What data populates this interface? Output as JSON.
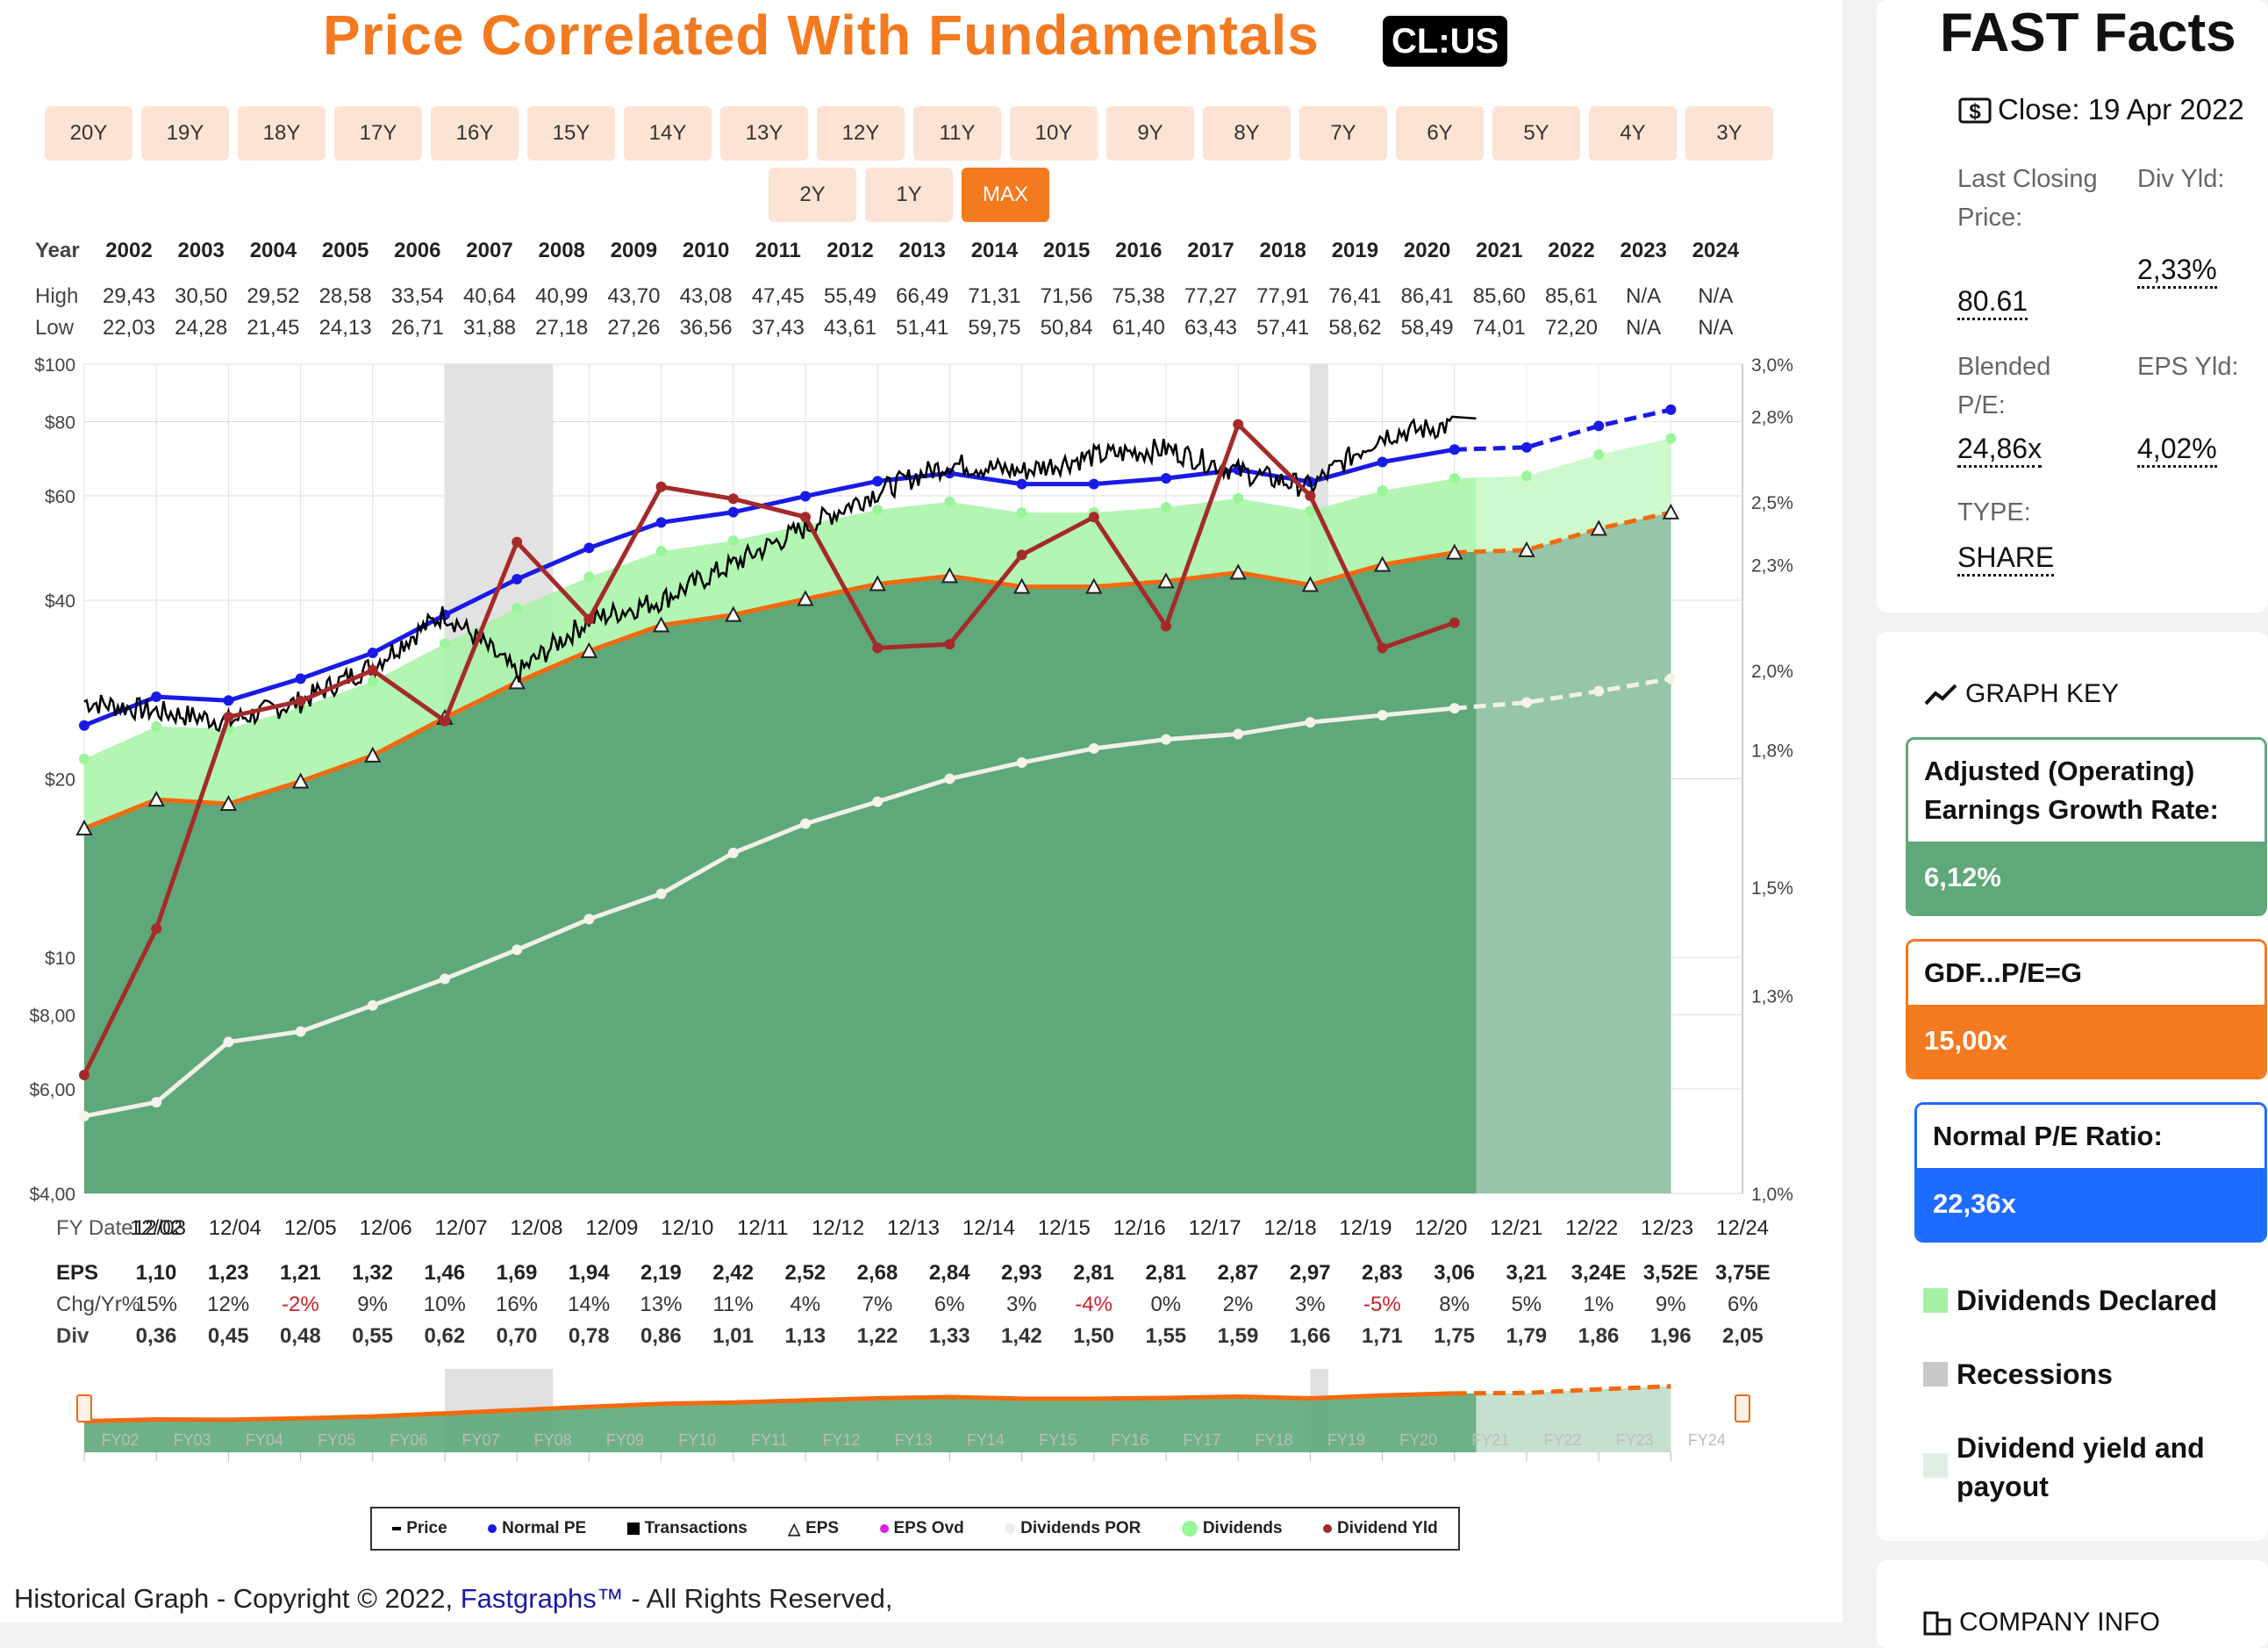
{
  "header": {
    "title": "Price Correlated With Fundamentals",
    "ticker": "CL:US"
  },
  "ranges": [
    "20Y",
    "19Y",
    "18Y",
    "17Y",
    "16Y",
    "15Y",
    "14Y",
    "13Y",
    "12Y",
    "11Y",
    "10Y",
    "9Y",
    "8Y",
    "7Y",
    "6Y",
    "5Y",
    "4Y",
    "3Y",
    "2Y",
    "1Y",
    "MAX"
  ],
  "active_range": "MAX",
  "year_table": {
    "year_label": "Year",
    "high_label": "High",
    "low_label": "Low",
    "years": [
      "2002",
      "2003",
      "2004",
      "2005",
      "2006",
      "2007",
      "2008",
      "2009",
      "2010",
      "2011",
      "2012",
      "2013",
      "2014",
      "2015",
      "2016",
      "2017",
      "2018",
      "2019",
      "2020",
      "2021",
      "2022",
      "2023",
      "2024"
    ],
    "high": [
      "29,43",
      "30,50",
      "29,52",
      "28,58",
      "33,54",
      "40,64",
      "40,99",
      "43,70",
      "43,08",
      "47,45",
      "55,49",
      "66,49",
      "71,31",
      "71,56",
      "75,38",
      "77,27",
      "77,91",
      "76,41",
      "86,41",
      "85,60",
      "85,61",
      "N/A",
      "N/A"
    ],
    "low": [
      "22,03",
      "24,28",
      "21,45",
      "24,13",
      "26,71",
      "31,88",
      "27,18",
      "27,26",
      "36,56",
      "37,43",
      "43,61",
      "51,41",
      "59,75",
      "50,84",
      "61,40",
      "63,43",
      "57,41",
      "58,62",
      "58,49",
      "74,01",
      "72,20",
      "N/A",
      "N/A"
    ]
  },
  "bottom_table": {
    "fy_label": "FY Date",
    "eps_label": "EPS",
    "chg_label": "Chg/Yr%",
    "div_label": "Div",
    "eps": [
      "1,10",
      "1,23",
      "1,21",
      "1,32",
      "1,46",
      "1,69",
      "1,94",
      "2,19",
      "2,42",
      "2,52",
      "2,68",
      "2,84",
      "2,93",
      "2,81",
      "2,81",
      "2,87",
      "2,97",
      "2,83",
      "3,06",
      "3,21",
      "3,24E",
      "3,52E",
      "3,75E"
    ],
    "chg": [
      "15%",
      "12%",
      "-2%",
      "9%",
      "10%",
      "16%",
      "14%",
      "13%",
      "11%",
      "4%",
      "7%",
      "6%",
      "3%",
      "-4%",
      "0%",
      "2%",
      "3%",
      "-5%",
      "8%",
      "5%",
      "1%",
      "9%",
      "6%"
    ],
    "div": [
      "0,36",
      "0,45",
      "0,48",
      "0,55",
      "0,62",
      "0,70",
      "0,78",
      "0,86",
      "1,01",
      "1,13",
      "1,22",
      "1,33",
      "1,42",
      "1,50",
      "1,55",
      "1,59",
      "1,66",
      "1,71",
      "1,75",
      "1,79",
      "1,86",
      "1,96",
      "2,05"
    ]
  },
  "chart_data": {
    "type": "line",
    "y_scale": "log",
    "ylim": [
      4,
      100
    ],
    "y_ticks": [
      "$100",
      "$80",
      "$60",
      "$40",
      "$20",
      "$10",
      "$8,00",
      "$6,00",
      "$4,00"
    ],
    "y2_ticks": [
      "3,0%",
      "2,8%",
      "2,5%",
      "2,3%",
      "2,0%",
      "1,8%",
      "1,5%",
      "1,3%",
      "1,0%"
    ],
    "x": [
      "12/02",
      "12/03",
      "12/04",
      "12/05",
      "12/06",
      "12/07",
      "12/08",
      "12/09",
      "12/10",
      "12/11",
      "12/12",
      "12/13",
      "12/14",
      "12/15",
      "12/16",
      "12/17",
      "12/18",
      "12/19",
      "12/20",
      "12/21",
      "12/22",
      "12/23",
      "12/24"
    ],
    "grid": true,
    "recessions": [
      [
        "12/07",
        "06/09"
      ],
      [
        "12/19",
        "04/20"
      ]
    ],
    "series": [
      {
        "name": "Price",
        "color": "#000000",
        "values": [
          27,
          26,
          25,
          27,
          31,
          38,
          30,
          37,
          40,
          46,
          53,
          61,
          68,
          66,
          70,
          72,
          66,
          62,
          76,
          79,
          81,
          null,
          null
        ]
      },
      {
        "name": "Normal PE",
        "color": "#1a1ae6",
        "values": [
          24.6,
          27.5,
          27.1,
          29.5,
          32.6,
          37.8,
          43.4,
          49.0,
          54.1,
          56.3,
          59.9,
          63.5,
          65.5,
          62.8,
          62.8,
          64.2,
          66.4,
          63.3,
          68.4,
          71.8,
          72.4,
          78.7,
          83.8
        ]
      },
      {
        "name": "EPS",
        "color": "#f26a0f",
        "values": [
          16.5,
          18.45,
          18.15,
          19.8,
          21.9,
          25.35,
          29.1,
          32.85,
          36.3,
          37.8,
          40.2,
          42.6,
          43.95,
          42.15,
          42.15,
          43.05,
          44.55,
          42.45,
          45.9,
          48.15,
          48.6,
          52.8,
          56.25
        ]
      },
      {
        "name": "Dividends POR",
        "color": "#f0f0e6",
        "values": [
          5.4,
          5.7,
          7.2,
          7.5,
          8.3,
          9.2,
          10.3,
          11.6,
          12.8,
          15.0,
          16.8,
          18.3,
          20.0,
          21.3,
          22.5,
          23.3,
          23.8,
          24.9,
          25.6,
          26.3,
          26.9,
          28.1,
          29.5
        ]
      },
      {
        "name": "Dividends",
        "color": "#b8f5b8",
        "values": [
          21.6,
          24.5,
          24.3,
          26.4,
          29.2,
          33.8,
          38.8,
          43.8,
          48.4,
          50.4,
          53.6,
          56.8,
          58.6,
          56.2,
          56.2,
          57.4,
          59.4,
          56.6,
          61.2,
          64.2,
          64.8,
          70.4,
          75.0
        ]
      },
      {
        "name": "Dividend Yld",
        "color": "#a52a2a",
        "values_pct": [
          1.17,
          1.42,
          1.88,
          1.92,
          2.0,
          1.87,
          2.37,
          2.14,
          2.55,
          2.51,
          2.45,
          2.06,
          2.07,
          2.33,
          2.45,
          2.12,
          2.77,
          2.52,
          2.06,
          2.13
        ]
      }
    ],
    "legend": [
      "Price",
      "Normal PE",
      "Transactions",
      "EPS",
      "EPS Ovd",
      "Dividends POR",
      "Dividends",
      "Dividend Yld"
    ],
    "navigator_labels": [
      "FY02",
      "FY03",
      "FY04",
      "FY05",
      "FY06",
      "FY07",
      "FY08",
      "FY09",
      "FY10",
      "FY11",
      "FY12",
      "FY13",
      "FY14",
      "FY15",
      "FY16",
      "FY17",
      "FY18",
      "FY19",
      "FY20",
      "FY21",
      "FY22",
      "FY23",
      "FY24"
    ]
  },
  "copyright": {
    "prefix": "Historical Graph - Copyright © 2022, ",
    "brand": "Fastgraphs™",
    "suffix": " - All Rights Reserved,"
  },
  "fast_facts": {
    "title": "FAST Facts",
    "close": "Close: 19 Apr 2022",
    "last_close_label": "Last Closing Price:",
    "last_close_value": "80.61",
    "div_yld_label": "Div Yld:",
    "div_yld_value": "2,33%",
    "blended_pe_label": "Blended P/E:",
    "blended_pe_value": "24,86x",
    "eps_yld_label": "EPS Yld:",
    "eps_yld_value": "4,02%",
    "type_label": "TYPE:",
    "type_value": "SHARE"
  },
  "graph_key": {
    "title": "GRAPH KEY",
    "growth_label": "Adjusted (Operating) Earnings Growth Rate:",
    "growth_value": "6,12%",
    "gdf_label": "GDF...P/E=G",
    "gdf_value": "15,00x",
    "normal_pe_label": "Normal P/E Ratio:",
    "normal_pe_value": "22,36x",
    "dividends_declared": "Dividends Declared",
    "recessions": "Recessions",
    "div_yield_payout": "Dividend yield and payout",
    "colors": {
      "green": "#5fa879",
      "orange": "#f47a20",
      "blue": "#1e6cff"
    }
  },
  "company_info": {
    "title": "COMPANY INFO"
  }
}
